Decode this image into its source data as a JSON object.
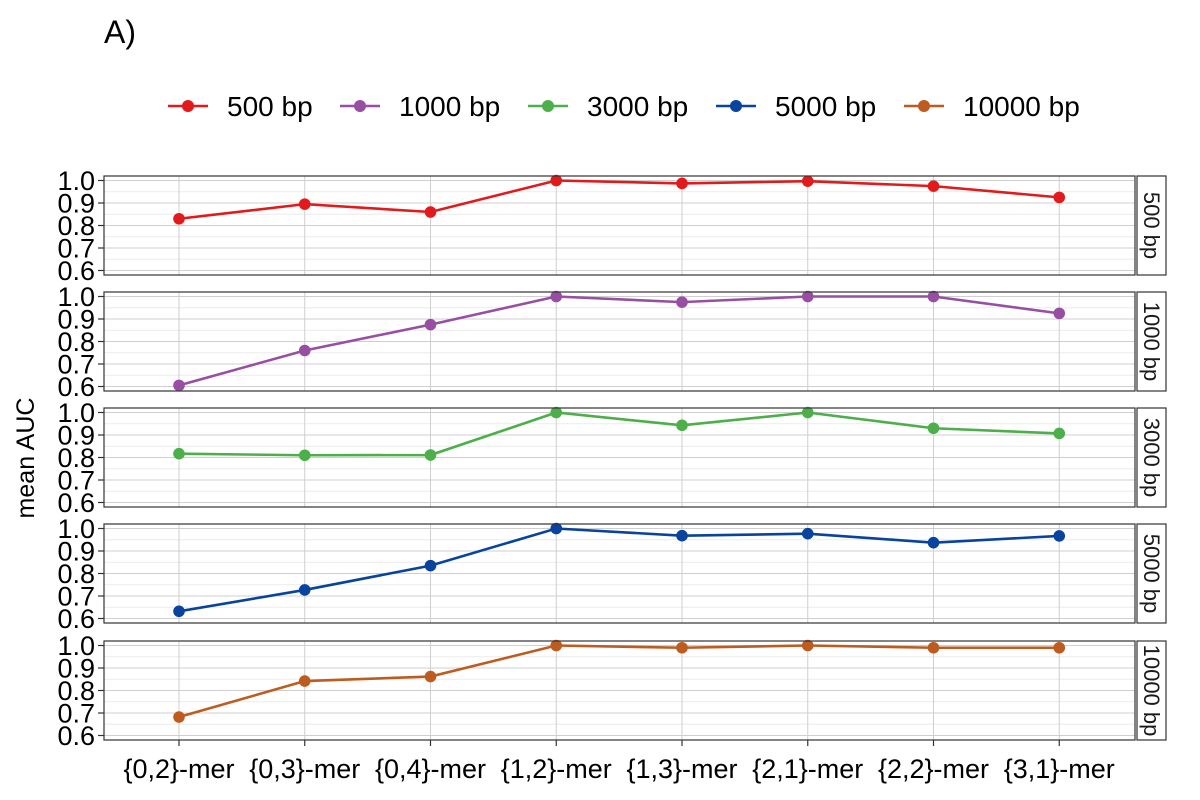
{
  "figure": {
    "panel_tag": "A)"
  },
  "chart_data": {
    "type": "line",
    "layout": "faceted-rows",
    "ylabel": "mean AUC",
    "xlabel": "",
    "ylim": [
      0.58,
      1.02
    ],
    "yticks": [
      "0.6",
      "0.7",
      "0.8",
      "0.9",
      "1.0"
    ],
    "ytick_values": [
      0.6,
      0.7,
      0.8,
      0.9,
      1.0
    ],
    "categories": [
      "{0,2}-mer",
      "{0,3}-mer",
      "{0,4}-mer",
      "{1,2}-mer",
      "{1,3}-mer",
      "{2,1}-mer",
      "{2,2}-mer",
      "{3,1}-mer"
    ],
    "grid": true,
    "legend_position": "top",
    "series": [
      {
        "name": "500 bp",
        "strip": "500 bp",
        "color": "#e31a1c",
        "values": [
          0.83,
          0.895,
          0.86,
          1.0,
          0.987,
          0.997,
          0.975,
          0.925
        ]
      },
      {
        "name": "1000 bp",
        "strip": "1000 bp",
        "color": "#984ea3",
        "values": [
          0.605,
          0.76,
          0.875,
          1.0,
          0.975,
          1.0,
          1.0,
          0.925
        ]
      },
      {
        "name": "3000 bp",
        "strip": "3000 bp",
        "color": "#4daf4a",
        "values": [
          0.817,
          0.81,
          0.811,
          1.0,
          0.943,
          1.0,
          0.93,
          0.907
        ]
      },
      {
        "name": "5000 bp",
        "strip": "5000 bp",
        "color": "#08439e",
        "values": [
          0.632,
          0.727,
          0.835,
          1.0,
          0.968,
          0.977,
          0.937,
          0.967
        ]
      },
      {
        "name": "10000 bp",
        "strip": "10000 bp",
        "color": "#be5b1f",
        "values": [
          0.682,
          0.842,
          0.862,
          1.0,
          0.99,
          1.0,
          0.99,
          0.99
        ]
      }
    ]
  }
}
